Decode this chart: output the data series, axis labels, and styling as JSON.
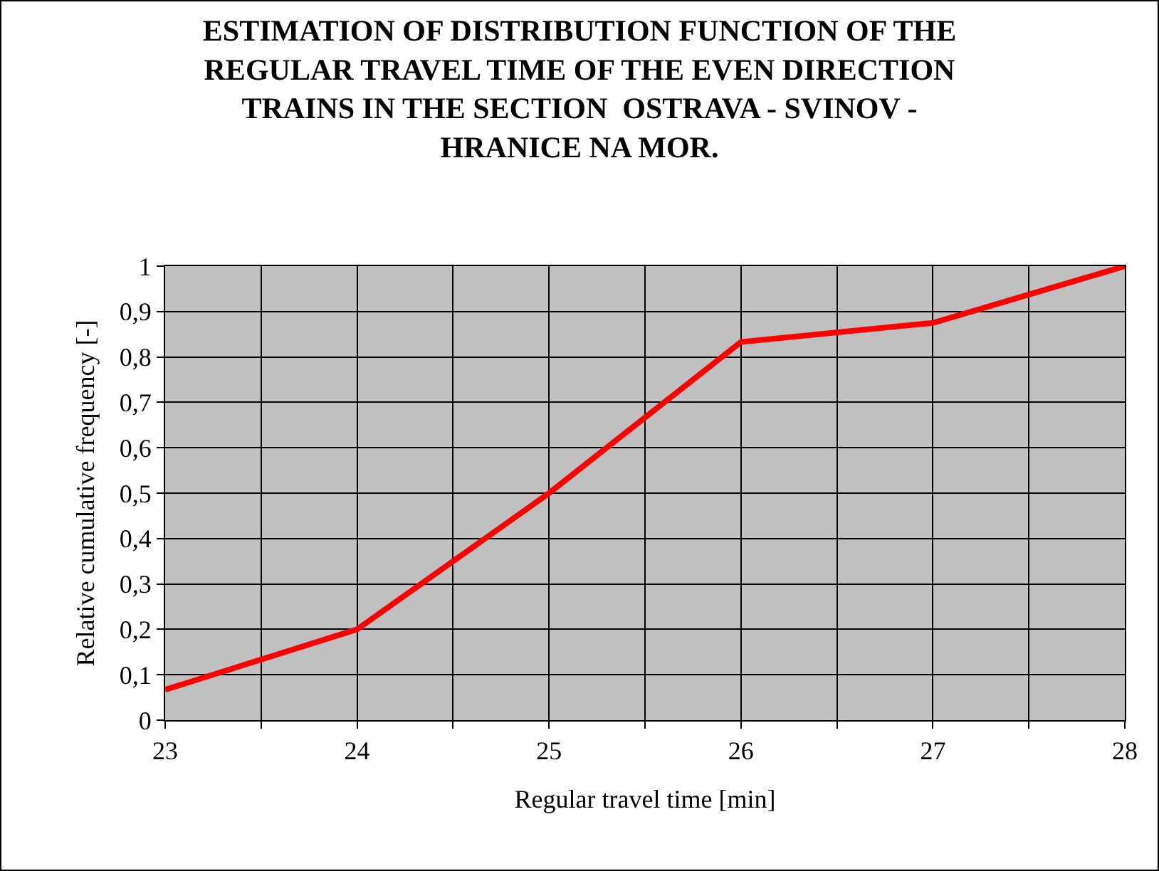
{
  "chart_data": {
    "type": "line",
    "title": "ESTIMATION OF DISTRIBUTION FUNCTION OF THE REGULAR TRAVEL TIME OF THE EVEN DIRECTION TRAINS IN THE SECTION  OSTRAVA - SVINOV - HRANICE NA MOR.",
    "xlabel": "Regular travel time [min]",
    "ylabel": "Relative cumulative frequency [-]",
    "x": [
      23,
      24,
      25,
      26,
      27,
      28
    ],
    "series": [
      {
        "color": "#ff0000",
        "values": [
          0.067,
          0.2,
          0.5,
          0.833,
          0.875,
          1
        ]
      }
    ],
    "xlim": [
      23,
      28
    ],
    "xticks": [
      23,
      {
        "value": 23.5,
        "label": null
      },
      24,
      {
        "value": 24.5,
        "label": null
      },
      25,
      {
        "value": 25.5,
        "label": null
      },
      26,
      {
        "value": 26.5,
        "label": null
      },
      27,
      {
        "value": 27.5,
        "label": null
      },
      28
    ],
    "ylim": [
      0,
      1
    ],
    "yticks": [
      0,
      {
        "value": 0.1,
        "label": "0,1"
      },
      {
        "value": 0.2,
        "label": "0,2"
      },
      {
        "value": 0.3,
        "label": "0,3"
      },
      {
        "value": 0.4,
        "label": "0,4"
      },
      {
        "value": 0.5,
        "label": "0,5"
      },
      {
        "value": 0.6,
        "label": "0,6"
      },
      {
        "value": 0.7,
        "label": "0,7"
      },
      {
        "value": 0.8,
        "label": "0,8"
      },
      {
        "value": 0.9,
        "label": "0,9"
      },
      1
    ],
    "grid": true,
    "marker": "none",
    "line_style": "solid"
  }
}
